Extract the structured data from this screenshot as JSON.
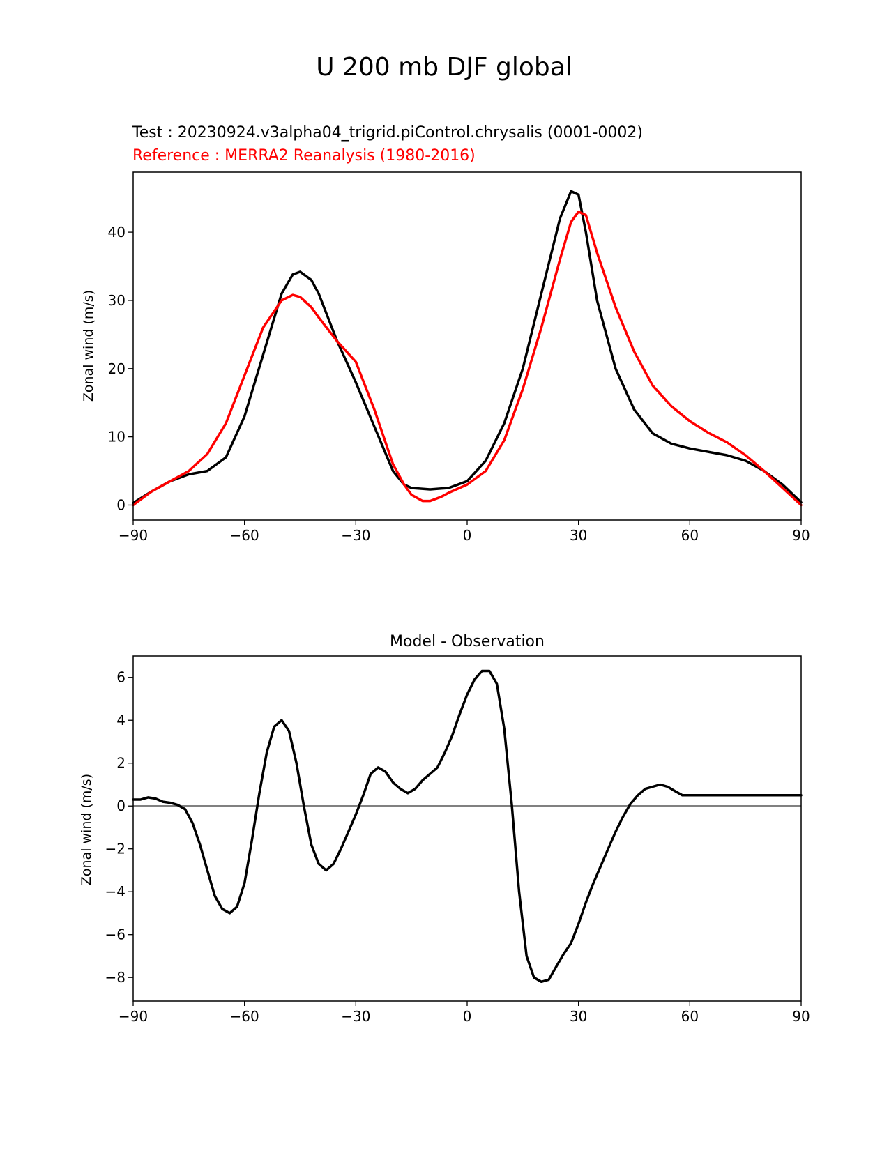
{
  "figure": {
    "title": "U 200 mb DJF global"
  },
  "colors": {
    "test": "#000000",
    "reference": "#ff0000",
    "zero_line": "#808080"
  },
  "chart_data": [
    {
      "type": "line",
      "title": "",
      "subtitle_test": "Test : 20230924.v3alpha04_trigrid.piControl.chrysalis (0001-0002)",
      "subtitle_reference": "Reference : MERRA2 Reanalysis (1980-2016)",
      "xlabel": "",
      "ylabel": "Zonal wind (m/s)",
      "xlim": [
        -90,
        90
      ],
      "ylim": [
        -2.2,
        48.8
      ],
      "xticks": [
        -90,
        -60,
        -30,
        0,
        30,
        60,
        90
      ],
      "xtick_labels": [
        "−90",
        "−60",
        "−30",
        "0",
        "30",
        "60",
        "90"
      ],
      "yticks": [
        0,
        10,
        20,
        30,
        40
      ],
      "ytick_labels": [
        "0",
        "10",
        "20",
        "30",
        "40"
      ],
      "grid": false,
      "series": [
        {
          "color": "#000000",
          "x": [
            -90,
            -85,
            -80,
            -75,
            -70,
            -65,
            -60,
            -55,
            -50,
            -47,
            -45,
            -42,
            -40,
            -35,
            -30,
            -25,
            -20,
            -17,
            -15,
            -10,
            -5,
            0,
            5,
            10,
            15,
            20,
            25,
            28,
            30,
            32,
            35,
            40,
            45,
            50,
            55,
            60,
            65,
            70,
            75,
            80,
            85,
            90
          ],
          "y": [
            0.3,
            2.0,
            3.5,
            4.5,
            5.0,
            7.0,
            13.0,
            22.0,
            31.0,
            33.8,
            34.2,
            33.0,
            31.0,
            24.0,
            18.0,
            11.5,
            5.0,
            3.0,
            2.5,
            2.3,
            2.5,
            3.5,
            6.5,
            12.0,
            20.0,
            31.0,
            42.0,
            46.0,
            45.5,
            40.0,
            30.0,
            20.0,
            14.0,
            10.5,
            9.0,
            8.3,
            7.8,
            7.3,
            6.5,
            5.0,
            3.0,
            0.4
          ]
        },
        {
          "color": "#ff0000",
          "x": [
            -90,
            -85,
            -80,
            -75,
            -70,
            -65,
            -60,
            -55,
            -50,
            -47,
            -45,
            -42,
            -40,
            -35,
            -30,
            -25,
            -20,
            -17,
            -15,
            -12,
            -10,
            -7,
            -5,
            0,
            5,
            10,
            15,
            20,
            25,
            28,
            30,
            32,
            35,
            40,
            45,
            50,
            55,
            60,
            65,
            70,
            75,
            80,
            85,
            90
          ],
          "y": [
            0.0,
            2.0,
            3.5,
            5.0,
            7.5,
            12.0,
            19.0,
            26.0,
            30.0,
            30.8,
            30.5,
            29.0,
            27.5,
            24.0,
            21.0,
            14.0,
            6.0,
            3.0,
            1.5,
            0.6,
            0.6,
            1.2,
            1.8,
            3.0,
            5.0,
            9.5,
            17.0,
            26.0,
            36.0,
            41.5,
            43.0,
            42.5,
            37.0,
            29.0,
            22.5,
            17.5,
            14.5,
            12.3,
            10.6,
            9.2,
            7.3,
            5.0,
            2.5,
            0.0
          ]
        }
      ]
    },
    {
      "type": "line",
      "title": "Model - Observation",
      "xlabel": "",
      "ylabel": "Zonal wind (m/s)",
      "xlim": [
        -90,
        90
      ],
      "ylim": [
        -9.1,
        7.0
      ],
      "xticks": [
        -90,
        -60,
        -30,
        0,
        30,
        60,
        90
      ],
      "xtick_labels": [
        "−90",
        "−60",
        "−30",
        "0",
        "30",
        "60",
        "90"
      ],
      "yticks": [
        -8,
        -6,
        -4,
        -2,
        0,
        2,
        4,
        6
      ],
      "ytick_labels": [
        "−8",
        "−6",
        "−4",
        "−2",
        "0",
        "2",
        "4",
        "6"
      ],
      "grid": false,
      "zero_line": 0,
      "series": [
        {
          "color": "#000000",
          "x": [
            -90,
            -88,
            -86,
            -84,
            -82,
            -80,
            -78,
            -76,
            -74,
            -72,
            -70,
            -68,
            -66,
            -64,
            -62,
            -60,
            -58,
            -56,
            -54,
            -52,
            -50,
            -48,
            -46,
            -44,
            -42,
            -40,
            -38,
            -36,
            -34,
            -32,
            -30,
            -28,
            -26,
            -24,
            -22,
            -20,
            -18,
            -16,
            -14,
            -12,
            -10,
            -8,
            -6,
            -4,
            -2,
            0,
            2,
            4,
            6,
            8,
            10,
            12,
            14,
            16,
            18,
            20,
            22,
            24,
            26,
            28,
            30,
            32,
            34,
            36,
            38,
            40,
            42,
            44,
            46,
            48,
            50,
            52,
            54,
            56,
            58,
            60,
            62,
            64,
            66,
            68,
            70,
            72,
            74,
            76,
            78,
            80,
            82,
            84,
            86,
            88,
            90
          ],
          "y": [
            0.3,
            0.3,
            0.4,
            0.35,
            0.2,
            0.15,
            0.05,
            -0.15,
            -0.8,
            -1.8,
            -3.0,
            -4.2,
            -4.8,
            -5.0,
            -4.7,
            -3.6,
            -1.6,
            0.6,
            2.5,
            3.7,
            4.0,
            3.5,
            2.0,
            0.0,
            -1.8,
            -2.7,
            -3.0,
            -2.7,
            -2.0,
            -1.2,
            -0.4,
            0.5,
            1.5,
            1.8,
            1.6,
            1.1,
            0.8,
            0.6,
            0.8,
            1.2,
            1.5,
            1.8,
            2.5,
            3.3,
            4.3,
            5.2,
            5.9,
            6.3,
            6.3,
            5.7,
            3.6,
            0.1,
            -4.0,
            -7.0,
            -8.0,
            -8.2,
            -8.1,
            -7.5,
            -6.9,
            -6.4,
            -5.5,
            -4.5,
            -3.6,
            -2.8,
            -2.0,
            -1.2,
            -0.5,
            0.1,
            0.5,
            0.8,
            0.9,
            1.0,
            0.9,
            0.7,
            0.5,
            0.5,
            0.5,
            0.5,
            0.5,
            0.5,
            0.5,
            0.5,
            0.5,
            0.5,
            0.5,
            0.5,
            0.5,
            0.5,
            0.5,
            0.5,
            0.5
          ]
        }
      ]
    }
  ]
}
